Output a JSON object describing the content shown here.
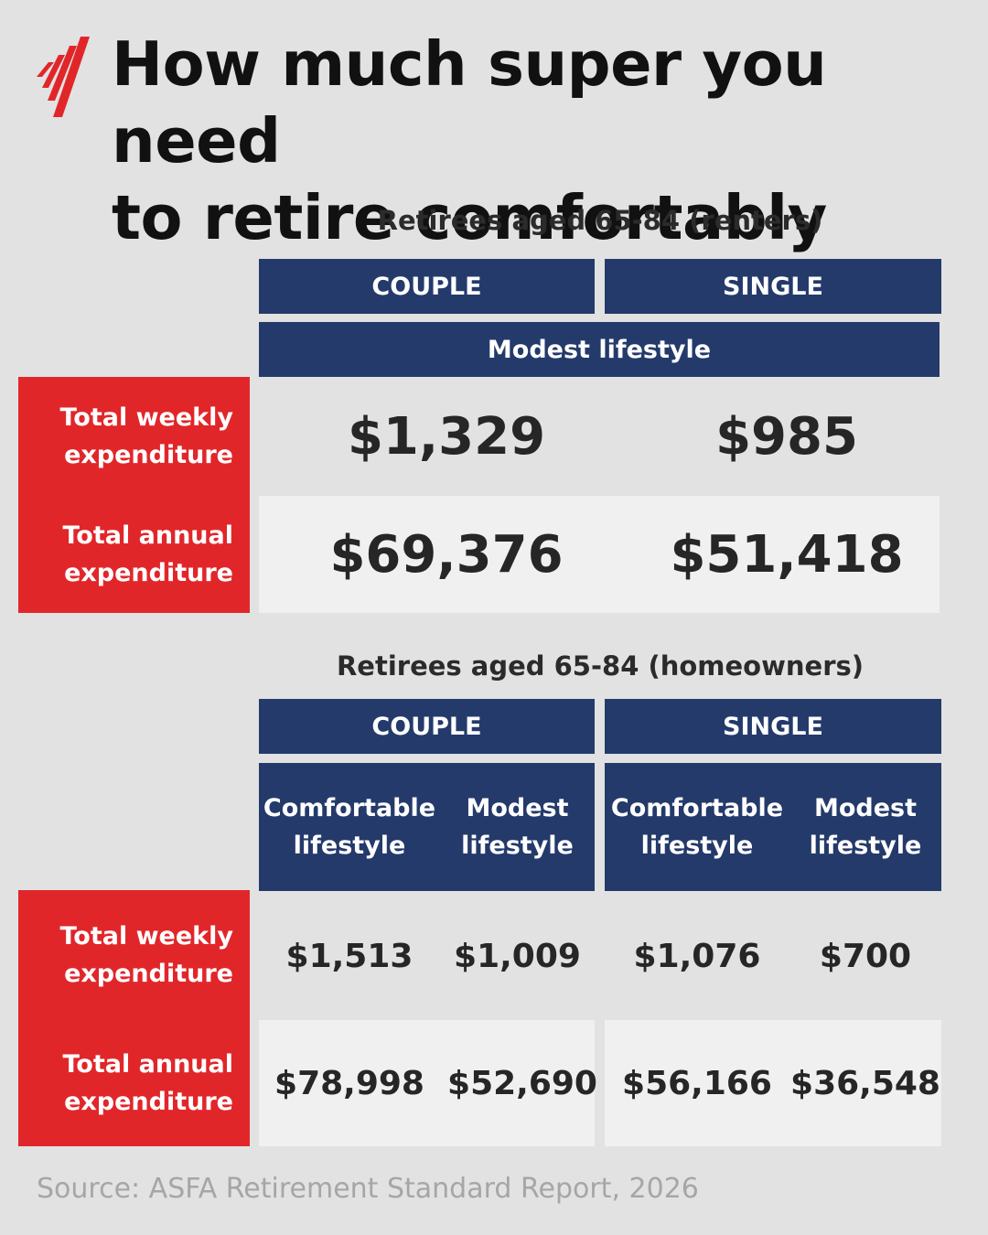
{
  "title_line1": "How much super you need",
  "title_line2": "to retire comfortably",
  "colors": {
    "navy": "#243a6b",
    "red": "#e1262a",
    "light_row": "#f0f0f0",
    "background": "#e2e2e2"
  },
  "logo_icon": "sbs-logo-icon",
  "renters": {
    "subtitle": "Retirees aged 65-84 (renters)",
    "col_couple": "COUPLE",
    "col_single": "SINGLE",
    "lifestyle": "Modest lifestyle",
    "row_weekly_l1": "Total weekly",
    "row_weekly_l2": "expenditure",
    "row_annual_l1": "Total annual",
    "row_annual_l2": "expenditure",
    "couple_weekly": "$1,329",
    "single_weekly": "$985",
    "couple_annual": "$69,376",
    "single_annual": "$51,418"
  },
  "homeowners": {
    "subtitle": "Retirees aged 65-84 (homeowners)",
    "col_couple": "COUPLE",
    "col_single": "SINGLE",
    "comfortable_l1": "Comfortable",
    "comfortable_l2": "lifestyle",
    "modest_l1": "Modest",
    "modest_l2": "lifestyle",
    "row_weekly_l1": "Total weekly",
    "row_weekly_l2": "expenditure",
    "row_annual_l1": "Total annual",
    "row_annual_l2": "expenditure",
    "weekly": [
      "$1,513",
      "$1,009",
      "$1,076",
      "$700"
    ],
    "annual": [
      "$78,998",
      "$52,690",
      "$56,166",
      "$36,548"
    ]
  },
  "source": "Source: ASFA Retirement Standard Report, 2026"
}
